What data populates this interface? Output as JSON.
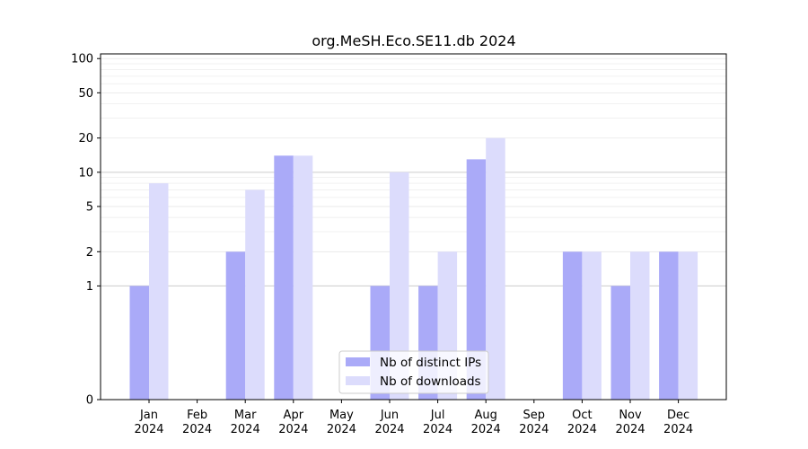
{
  "chart_data": {
    "type": "bar",
    "title": "org.MeSH.Eco.SE11.db 2024",
    "xlabel": "",
    "ylabel": "",
    "y_scale": "symlog",
    "ylim": [
      0,
      110
    ],
    "y_ticks": [
      0,
      1,
      2,
      5,
      10,
      20,
      50,
      100
    ],
    "y_tick_labels": [
      "0",
      "1",
      "2",
      "5",
      "10",
      "20",
      "50",
      "100"
    ],
    "categories": [
      "Jan\n2024",
      "Feb\n2024",
      "Mar\n2024",
      "Apr\n2024",
      "May\n2024",
      "Jun\n2024",
      "Jul\n2024",
      "Aug\n2024",
      "Sep\n2024",
      "Oct\n2024",
      "Nov\n2024",
      "Dec\n2024"
    ],
    "series": [
      {
        "name": "Nb of distinct IPs",
        "color": "#aaaaf8",
        "values": [
          1,
          0,
          2,
          14,
          0,
          1,
          1,
          13,
          0,
          2,
          1,
          2
        ]
      },
      {
        "name": "Nb of downloads",
        "color": "#dcdcfc",
        "values": [
          8,
          0,
          7,
          14,
          0,
          10,
          2,
          20,
          0,
          2,
          2,
          2
        ]
      }
    ],
    "grid": "horizontal",
    "legend_position": "lower center"
  }
}
